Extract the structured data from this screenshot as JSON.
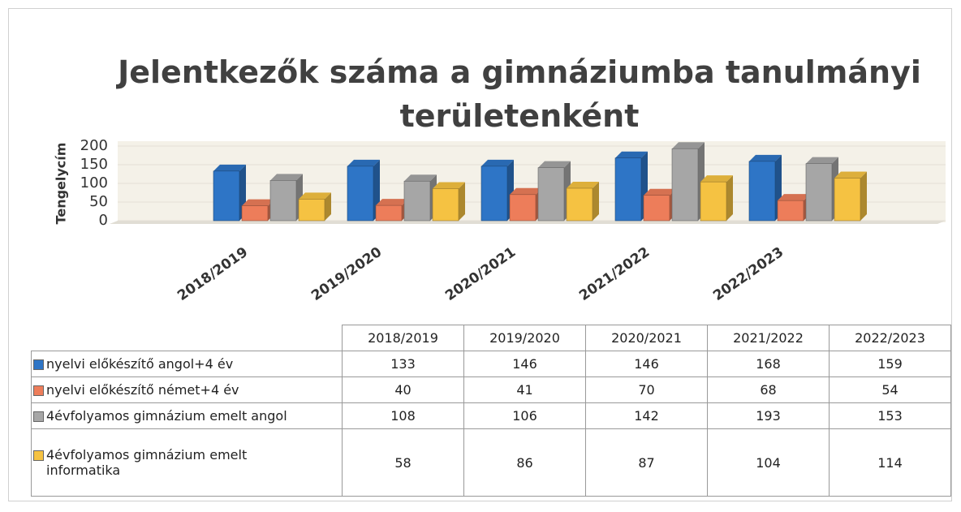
{
  "chart_data": {
    "type": "bar",
    "title": "Jelentkezők száma a gimnáziumba tanulmányi területenként",
    "y_label": "Tengelycím",
    "categories": [
      "2018/2019",
      "2019/2020",
      "2020/2021",
      "2021/2022",
      "2022/2023"
    ],
    "series": [
      {
        "name": "nyelvi előkészítő angol+4 év",
        "color": "#2e75c6",
        "values": [
          133,
          146,
          146,
          168,
          159
        ]
      },
      {
        "name": "nyelvi előkészítő német+4 év",
        "color": "#ed7d5a",
        "values": [
          40,
          41,
          70,
          68,
          54
        ]
      },
      {
        "name": "4évfolyamos gimnázium emelt angol",
        "color": "#a6a6a6",
        "values": [
          108,
          106,
          142,
          193,
          153
        ]
      },
      {
        "name": "4évfolyamos gimnázium emelt informatika",
        "color": "#f5c242",
        "values": [
          58,
          86,
          87,
          104,
          114
        ]
      }
    ],
    "ylim": [
      0,
      200
    ],
    "yticks": [
      0,
      50,
      100,
      150,
      200
    ],
    "grid": true
  }
}
